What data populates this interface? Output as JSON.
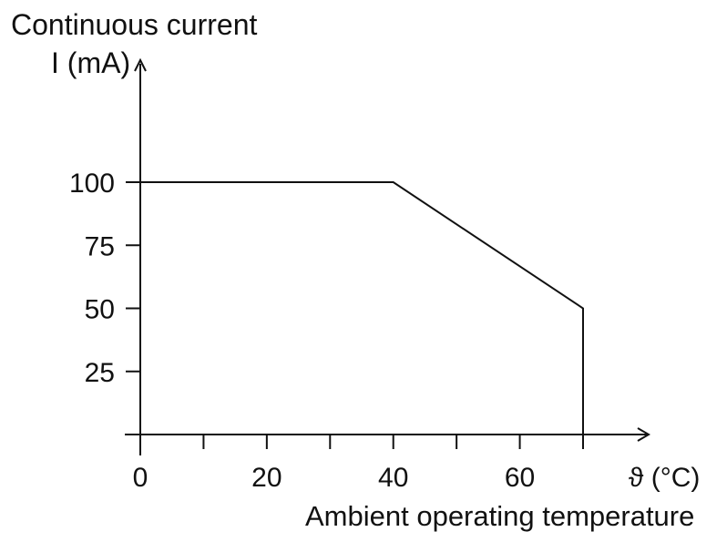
{
  "chart_data": {
    "type": "line",
    "ylabel_line1": "Continuous current",
    "ylabel_line2": "I (mA)",
    "xlabel_unit": "ϑ (°C)",
    "xlabel": "Ambient operating temperature",
    "x_ticks_labeled": [
      0,
      20,
      40,
      60
    ],
    "x_ticks_all": [
      0,
      10,
      20,
      30,
      40,
      50,
      60,
      70
    ],
    "y_ticks": [
      25,
      50,
      75,
      100
    ],
    "xlim": [
      0,
      70
    ],
    "ylim": [
      0,
      100
    ],
    "grid": false,
    "series": [
      {
        "x": [
          0,
          40,
          70,
          70
        ],
        "y": [
          100,
          100,
          50,
          0
        ]
      }
    ],
    "colors": {
      "line": "#111111",
      "axis": "#111111"
    }
  }
}
